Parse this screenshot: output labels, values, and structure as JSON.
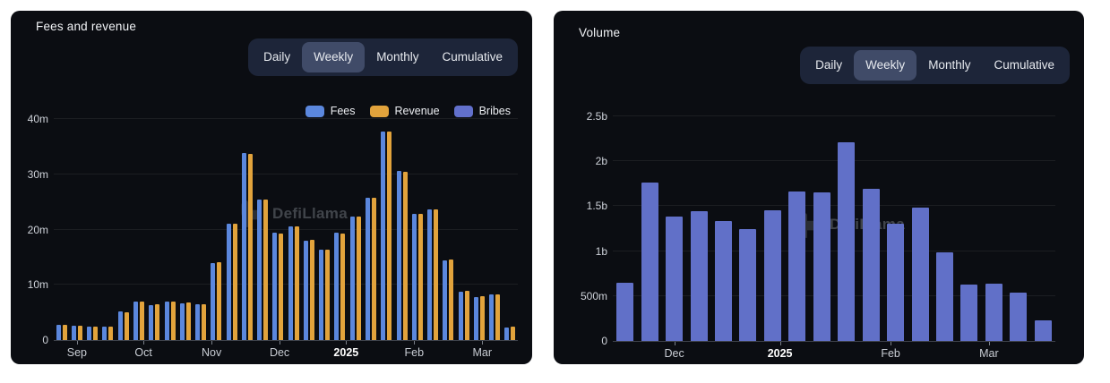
{
  "page": {
    "background": "#ffffff",
    "card_background": "#0b0d12"
  },
  "cards": [
    {
      "title": "Fees and revenue",
      "tabs": {
        "options": [
          "Daily",
          "Weekly",
          "Monthly",
          "Cumulative"
        ],
        "active": "Weekly"
      },
      "legend": [
        {
          "name": "Fees",
          "color": "#5b87dd"
        },
        {
          "name": "Revenue",
          "color": "#e2a33c"
        },
        {
          "name": "Bribes",
          "color": "#6270cc"
        }
      ],
      "watermark": "DefiLlama"
    },
    {
      "title": "Volume",
      "tabs": {
        "options": [
          "Daily",
          "Weekly",
          "Monthly",
          "Cumulative"
        ],
        "active": "Weekly"
      },
      "legend": [],
      "watermark": "DefiLlama"
    }
  ],
  "chart_data": [
    {
      "type": "bar",
      "title": "Fees and revenue",
      "interval": "Weekly",
      "unit": "millions USD",
      "ylim": [
        0,
        40
      ],
      "grid": true,
      "legend_position": "top-right",
      "yticks": [
        {
          "v": 0,
          "label": "0"
        },
        {
          "v": 10,
          "label": "10m"
        },
        {
          "v": 20,
          "label": "20m"
        },
        {
          "v": 30,
          "label": "30m"
        },
        {
          "v": 40,
          "label": "40m"
        }
      ],
      "xticks": [
        {
          "pos": 1,
          "label": "Sep",
          "bold": false
        },
        {
          "pos": 5.3,
          "label": "Oct",
          "bold": false
        },
        {
          "pos": 9.7,
          "label": "Nov",
          "bold": false
        },
        {
          "pos": 14.1,
          "label": "Dec",
          "bold": false
        },
        {
          "pos": 18.4,
          "label": "2025",
          "bold": true
        },
        {
          "pos": 22.8,
          "label": "Feb",
          "bold": false
        },
        {
          "pos": 27.2,
          "label": "Mar",
          "bold": false
        }
      ],
      "series": [
        {
          "name": "Fees",
          "color": "#5b87dd",
          "values": [
            2.7,
            2.6,
            2.4,
            2.5,
            5.2,
            6.9,
            6.3,
            7.0,
            6.7,
            6.4,
            14.0,
            21.0,
            33.8,
            25.4,
            19.4,
            20.6,
            18.0,
            16.3,
            19.4,
            22.3,
            25.8,
            37.8,
            30.6,
            22.8,
            23.6,
            14.4,
            8.8,
            7.8,
            8.2,
            2.3
          ]
        },
        {
          "name": "Revenue",
          "color": "#e2a33c",
          "values": [
            2.8,
            2.6,
            2.4,
            2.5,
            5.1,
            7.0,
            6.4,
            7.0,
            6.8,
            6.5,
            14.1,
            21.0,
            33.7,
            25.5,
            19.3,
            20.5,
            18.1,
            16.4,
            19.3,
            22.4,
            25.7,
            37.7,
            30.5,
            22.9,
            23.7,
            14.5,
            8.9,
            7.9,
            8.3,
            2.4
          ]
        },
        {
          "name": "Bribes",
          "color": "#6270cc",
          "values": [
            0,
            0,
            0,
            0,
            0,
            0,
            0,
            0,
            0,
            0,
            0,
            0,
            0,
            0,
            0,
            0,
            0,
            0,
            0,
            0,
            0,
            0,
            0,
            0,
            0,
            0,
            0,
            0,
            0,
            0
          ]
        }
      ]
    },
    {
      "type": "bar",
      "title": "Volume",
      "interval": "Weekly",
      "unit": "billions USD",
      "ylim": [
        0,
        2.5
      ],
      "grid": true,
      "legend_position": "none",
      "yticks": [
        {
          "v": 0,
          "label": "0"
        },
        {
          "v": 0.5,
          "label": "500m"
        },
        {
          "v": 1,
          "label": "1b"
        },
        {
          "v": 1.5,
          "label": "1.5b"
        },
        {
          "v": 2,
          "label": "2b"
        },
        {
          "v": 2.5,
          "label": "2.5b"
        }
      ],
      "xticks": [
        {
          "pos": 2,
          "label": "Dec",
          "bold": false
        },
        {
          "pos": 6.3,
          "label": "2025",
          "bold": true
        },
        {
          "pos": 10.8,
          "label": "Feb",
          "bold": false
        },
        {
          "pos": 14.8,
          "label": "Mar",
          "bold": false
        }
      ],
      "series": [
        {
          "name": "Volume",
          "color": "#6170c8",
          "values": [
            0.65,
            1.76,
            1.38,
            1.44,
            1.33,
            1.25,
            1.45,
            1.66,
            1.65,
            2.21,
            1.69,
            1.3,
            1.48,
            0.99,
            0.63,
            0.64,
            0.54,
            0.23
          ]
        }
      ]
    }
  ]
}
